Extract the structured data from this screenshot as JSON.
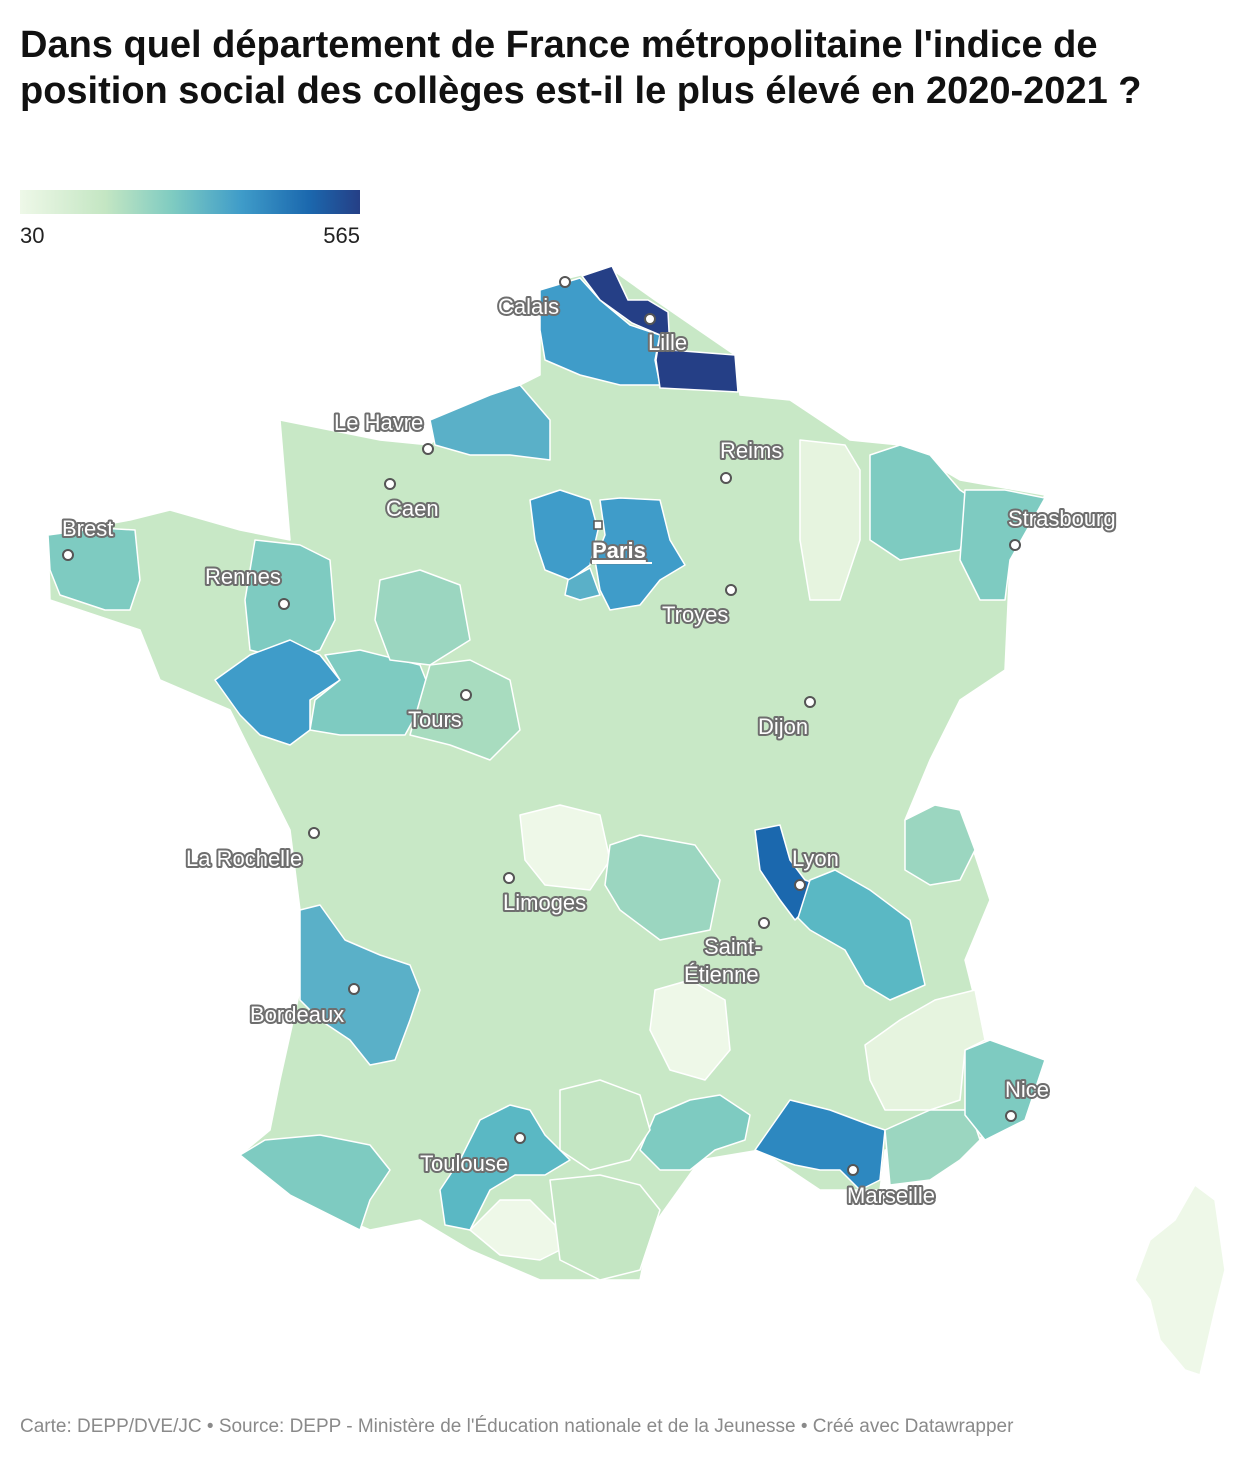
{
  "title": "Dans quel département de France métropolitaine l'indice de position social des collèges est-il le plus élevé en 2020-2021 ?",
  "legend": {
    "min": "30",
    "max": "565",
    "colors": [
      "#eef8e8",
      "#c4e6c3",
      "#7ecbc1",
      "#3f9cc9",
      "#1b68ae",
      "#253f86"
    ]
  },
  "cities": [
    {
      "name": "Calais"
    },
    {
      "name": "Lille"
    },
    {
      "name": "Le Havre"
    },
    {
      "name": "Reims"
    },
    {
      "name": "Caen"
    },
    {
      "name": "Brest"
    },
    {
      "name": "Strasbourg"
    },
    {
      "name": "Paris"
    },
    {
      "name": "Rennes"
    },
    {
      "name": "Troyes"
    },
    {
      "name": "Tours"
    },
    {
      "name": "Dijon"
    },
    {
      "name": "Lyon"
    },
    {
      "name": "La Rochelle"
    },
    {
      "name": "Limoges"
    },
    {
      "name": "Saint-",
      "name2": "Étienne"
    },
    {
      "name": "Bordeaux"
    },
    {
      "name": "Nice"
    },
    {
      "name": "Toulouse"
    },
    {
      "name": "Marseille"
    }
  ],
  "footer": "Carte: DEPP/DVE/JC • Source: DEPP - Ministère de l'Éducation nationale et de la Jeunesse • Créé avec Datawrapper"
}
